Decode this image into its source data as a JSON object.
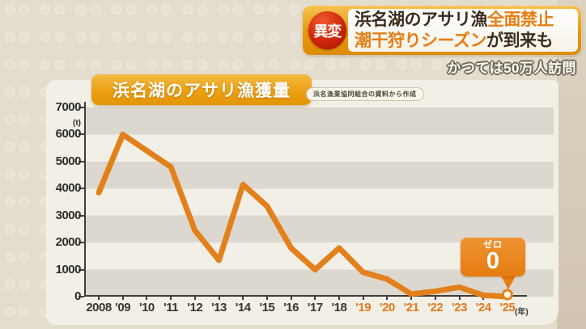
{
  "header": {
    "badge": "異変",
    "title_line1_dark": "浜名湖のアサリ漁",
    "title_line1_orange": "全面禁止",
    "title_line2_orange": "潮干狩りシーズン",
    "title_line2_dark": "が到来も",
    "caption": "かつては50万人訪問"
  },
  "chart": {
    "title": "浜名湖のアサリ漁獲量",
    "source_note": "浜名漁業協同組合の資料から作成",
    "callout": {
      "label": "ゼロ",
      "value": "0"
    }
  },
  "chart_data": {
    "type": "line",
    "title": "浜名湖のアサリ漁獲量",
    "unit": "(t)",
    "x_axis_suffix": "(年)",
    "x_labels": [
      "2008",
      "'09",
      "'10",
      "'11",
      "'12",
      "'13",
      "'14",
      "'15",
      "'16",
      "'17",
      "'18",
      "'19",
      "'20",
      "'21",
      "'22",
      "'23",
      "'24",
      "'25"
    ],
    "values": [
      3850,
      6000,
      5400,
      4800,
      2450,
      1350,
      4150,
      3350,
      1800,
      1000,
      1800,
      900,
      650,
      100,
      200,
      350,
      50,
      0
    ],
    "ylim": [
      0,
      7000
    ],
    "y_ticks": [
      0,
      1000,
      2000,
      3000,
      4000,
      5000,
      6000,
      7000
    ],
    "highlight_from_index": 11,
    "last_point_annotation": "ゼロ 0",
    "colors": {
      "line": "#e2811c",
      "highlight_years": "#e0791a",
      "title_badge": "#eba01a",
      "alert_badge_red": "#cc2508",
      "dark_text": "#3b2c1d",
      "orange_text": "#e67d12",
      "stripe_dark": "#dcd8cf",
      "panel_cream": "#f2efe7"
    }
  }
}
